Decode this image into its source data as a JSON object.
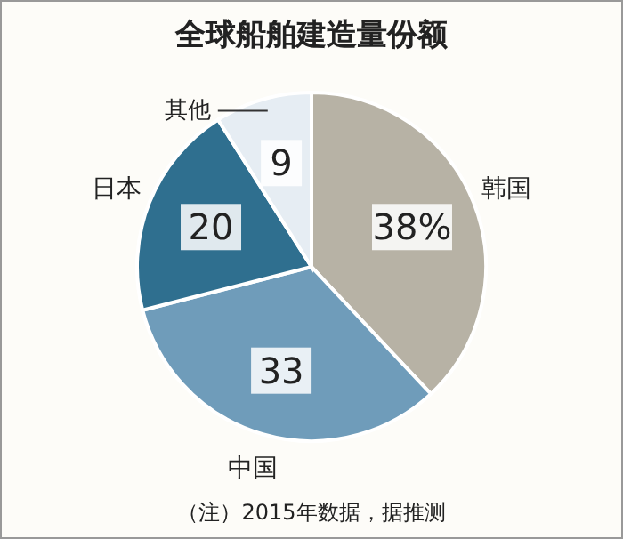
{
  "chart_data": {
    "type": "pie",
    "title": "全球船舶建造量份额",
    "categories": [
      "韩国",
      "中国",
      "日本",
      "其他"
    ],
    "values": [
      38,
      33,
      20,
      9
    ],
    "value_labels": [
      "38%",
      "33",
      "20",
      "9"
    ],
    "colors": [
      "#b7b2a5",
      "#6f9cba",
      "#2f6f8f",
      "#e6edf3"
    ],
    "annotations": [
      "（注）2015年数据，据推测"
    ]
  }
}
